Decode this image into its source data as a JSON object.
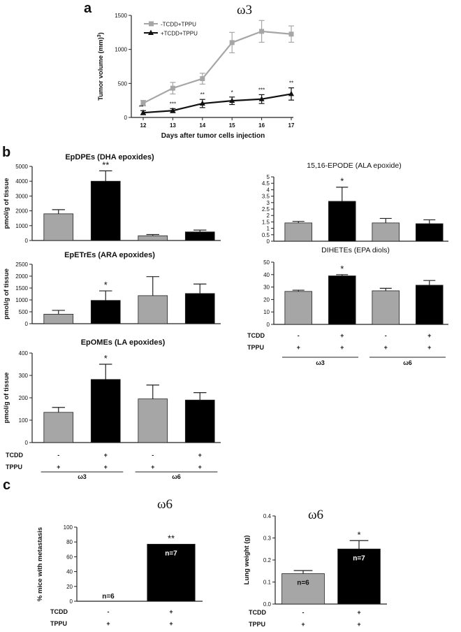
{
  "panel_letters": {
    "a": "a",
    "b": "b",
    "c": "c"
  },
  "chart_data": [
    {
      "id": "a",
      "type": "line",
      "title": "ω3",
      "xlabel": "Days after tumor cells  injection",
      "ylabel": "Tumor volume (mm3)",
      "x": [
        12,
        13,
        14,
        15,
        16,
        17
      ],
      "ylim": [
        0,
        1500
      ],
      "yticks": [
        0,
        500,
        1000,
        1500
      ],
      "series": [
        {
          "name": "-TCDD+TPPU",
          "color": "#a6a6a6",
          "marker": "square",
          "values": [
            210,
            430,
            570,
            1100,
            1265,
            1225
          ],
          "errors": [
            40,
            85,
            80,
            150,
            160,
            120
          ]
        },
        {
          "name": "+TCDD+TPPU",
          "color": "#111111",
          "marker": "triangle",
          "values": [
            70,
            100,
            205,
            245,
            270,
            345
          ],
          "errors": [
            30,
            30,
            60,
            55,
            65,
            90
          ]
        }
      ],
      "significance": [
        "**",
        "***",
        "**",
        "*",
        "***",
        "**"
      ]
    },
    {
      "id": "b1",
      "type": "bar",
      "title": "EpDPEs (DHA epoxides)",
      "ylabel": "pmol/g of tissue",
      "ylim": [
        0,
        5000
      ],
      "yticks": [
        0,
        1000,
        2000,
        3000,
        4000,
        5000
      ],
      "values": [
        1800,
        4000,
        320,
        580
      ],
      "errors": [
        280,
        700,
        80,
        120
      ],
      "colors": [
        "#a6a6a6",
        "#000000",
        "#a6a6a6",
        "#000000"
      ],
      "significance": [
        "",
        "**",
        "",
        ""
      ]
    },
    {
      "id": "b2",
      "type": "bar",
      "title": "EpETrEs (ARA epoxides)",
      "ylabel": "pmol/g of tissue",
      "ylim": [
        0,
        2500
      ],
      "yticks": [
        0,
        500,
        1000,
        1500,
        2000,
        2500
      ],
      "values": [
        400,
        980,
        1180,
        1270
      ],
      "errors": [
        160,
        400,
        800,
        400
      ],
      "colors": [
        "#a6a6a6",
        "#000000",
        "#a6a6a6",
        "#000000"
      ],
      "significance": [
        "",
        "*",
        "",
        ""
      ]
    },
    {
      "id": "b3",
      "type": "bar",
      "title": "EpOMEs (LA epoxides)",
      "ylabel": "pmol/g of tissue",
      "ylim": [
        0,
        400
      ],
      "yticks": [
        0,
        100,
        200,
        300,
        400
      ],
      "values": [
        135,
        282,
        195,
        190
      ],
      "errors": [
        22,
        68,
        62,
        33
      ],
      "colors": [
        "#a6a6a6",
        "#000000",
        "#a6a6a6",
        "#000000"
      ],
      "significance": [
        "",
        "*",
        "",
        ""
      ],
      "conditions": {
        "rows": [
          {
            "label": "TCDD",
            "values": [
              "-",
              "+",
              "-",
              "+"
            ]
          },
          {
            "label": "TPPU",
            "values": [
              "+",
              "+",
              "+",
              "+"
            ]
          }
        ],
        "groups": [
          "ω3",
          "ω6"
        ]
      }
    },
    {
      "id": "b4",
      "type": "bar",
      "title": "15,16-EPODE (ALA epoxide)",
      "ylabel": "",
      "ylim": [
        0,
        5
      ],
      "yticks": [
        0,
        0.5,
        1,
        1.5,
        2,
        2.5,
        3,
        3.5,
        4,
        4.5,
        5
      ],
      "values": [
        1.42,
        3.1,
        1.42,
        1.36
      ],
      "errors": [
        0.12,
        1.1,
        0.35,
        0.3
      ],
      "colors": [
        "#a6a6a6",
        "#000000",
        "#a6a6a6",
        "#000000"
      ],
      "significance": [
        "",
        "*",
        "",
        ""
      ]
    },
    {
      "id": "b5",
      "type": "bar",
      "title": "DIHETEs (EPA diols)",
      "ylabel": "",
      "ylim": [
        0,
        50
      ],
      "yticks": [
        0,
        10,
        20,
        30,
        40,
        50
      ],
      "values": [
        26.5,
        39,
        27,
        31.5
      ],
      "errors": [
        1,
        1,
        2,
        3.8
      ],
      "colors": [
        "#a6a6a6",
        "#000000",
        "#a6a6a6",
        "#000000"
      ],
      "significance": [
        "",
        "*",
        "",
        ""
      ],
      "conditions": {
        "rows": [
          {
            "label": "TCDD",
            "values": [
              "-",
              "+",
              "-",
              "+"
            ]
          },
          {
            "label": "TPPU",
            "values": [
              "+",
              "+",
              "+",
              "+"
            ]
          }
        ],
        "groups": [
          "ω3",
          "ω6"
        ]
      }
    },
    {
      "id": "c1",
      "type": "bar",
      "title": "ω6",
      "ylabel": "% mice with metastasis",
      "ylim": [
        0,
        100
      ],
      "yticks": [
        0,
        20,
        40,
        60,
        80,
        100
      ],
      "values": [
        0,
        77
      ],
      "errors": [
        0,
        0
      ],
      "colors": [
        "#a6a6a6",
        "#000000"
      ],
      "significance": [
        "",
        "**"
      ],
      "n_labels": [
        "n=6",
        "n=7"
      ],
      "conditions": {
        "rows": [
          {
            "label": "TCDD",
            "values": [
              "-",
              "+"
            ]
          },
          {
            "label": "TPPU",
            "values": [
              "+",
              "+"
            ]
          }
        ]
      }
    },
    {
      "id": "c2",
      "type": "bar",
      "title": "ω6",
      "ylabel": "Lung weight (g)",
      "ylim": [
        0,
        0.4
      ],
      "yticks": [
        0.0,
        0.1,
        0.2,
        0.3,
        0.4
      ],
      "values": [
        0.138,
        0.25
      ],
      "errors": [
        0.014,
        0.038
      ],
      "colors": [
        "#a6a6a6",
        "#000000"
      ],
      "significance": [
        "",
        "*"
      ],
      "n_labels": [
        "n=6",
        "n=7"
      ],
      "conditions": {
        "rows": [
          {
            "label": "TCDD",
            "values": [
              "-",
              "+"
            ]
          },
          {
            "label": "TPPU",
            "values": [
              "+",
              "+"
            ]
          }
        ]
      }
    }
  ]
}
